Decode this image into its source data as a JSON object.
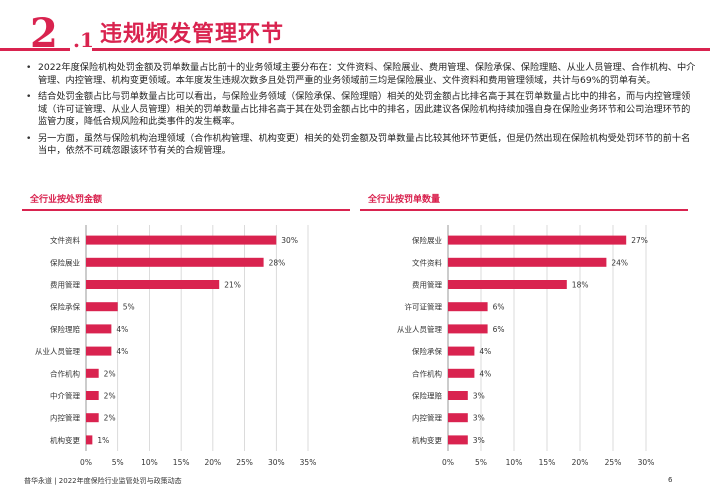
{
  "section": {
    "number_big": "2",
    "number_small": ".1",
    "title": "违规频发管理环节"
  },
  "bullets": [
    "2022年度保险机构处罚金额及罚单数量占比前十的业务领域主要分布在：文件资料、保险展业、费用管理、保险承保、保险理赔、从业人员管理、合作机构、中介管理、内控管理、机构变更领域。本年度发生违规次数多且处罚严重的业务领域前三均是保险展业、文件资料和费用管理领域，共计与69%的罚单有关。",
    "结合处罚金额占比与罚单数量占比可以看出，与保险业务领域（保险承保、保险理赔）相关的处罚金额占比排名高于其在罚单数量占比中的排名，而与内控管理领域（许可证管理、从业人员管理）相关的罚单数量占比排名高于其在处罚金额占比中的排名，因此建议各保险机构持续加强自身在保险业务环节和公司治理环节的监管力度，降低合规风险和此类事件的发生概率。",
    "另一方面，虽然与保险机构治理领域（合作机构管理、机构变更）相关的处罚金额及罚单数量占比较其他环节更低，但是仍然出现在保险机构受处罚环节的前十名当中，依然不可疏忽跟该环节有关的合规管理。"
  ],
  "chart_data": [
    {
      "type": "bar",
      "orientation": "horizontal",
      "title": "全行业按处罚金额",
      "categories": [
        "文件资料",
        "保险展业",
        "费用管理",
        "保险承保",
        "保险理赔",
        "从业人员管理",
        "合作机构",
        "中介管理",
        "内控管理",
        "机构变更"
      ],
      "values": [
        30,
        28,
        21,
        5,
        4,
        4,
        2,
        2,
        2,
        1
      ],
      "value_labels": [
        "30%",
        "28%",
        "21%",
        "5%",
        "4%",
        "4%",
        "2%",
        "2%",
        "2%",
        "1%"
      ],
      "xticks": [
        "0%",
        "5%",
        "10%",
        "15%",
        "20%",
        "25%",
        "30%",
        "35%"
      ],
      "xlim": [
        0,
        35
      ],
      "grid": true,
      "bar_color": "#d9234f"
    },
    {
      "type": "bar",
      "orientation": "horizontal",
      "title": "全行业按罚单数量",
      "categories": [
        "保险展业",
        "文件资料",
        "费用管理",
        "许可证管理",
        "从业人员管理",
        "保险承保",
        "合作机构",
        "保险理赔",
        "内控管理",
        "机构变更"
      ],
      "values": [
        27,
        24,
        18,
        6,
        6,
        4,
        4,
        3,
        3,
        3
      ],
      "value_labels": [
        "27%",
        "24%",
        "18%",
        "6%",
        "6%",
        "4%",
        "4%",
        "3%",
        "3%",
        "3%"
      ],
      "xticks": [
        "0%",
        "5%",
        "10%",
        "15%",
        "20%",
        "25%",
        "30%"
      ],
      "xlim": [
        0,
        30
      ],
      "grid": true,
      "bar_color": "#d9234f"
    }
  ],
  "footer": {
    "text": "普华永道 | 2022年度保险行业监管处罚与政策动态",
    "page": "6"
  },
  "colors": {
    "accent": "#d9234f",
    "grid": "#cccccc",
    "text": "#222222"
  }
}
